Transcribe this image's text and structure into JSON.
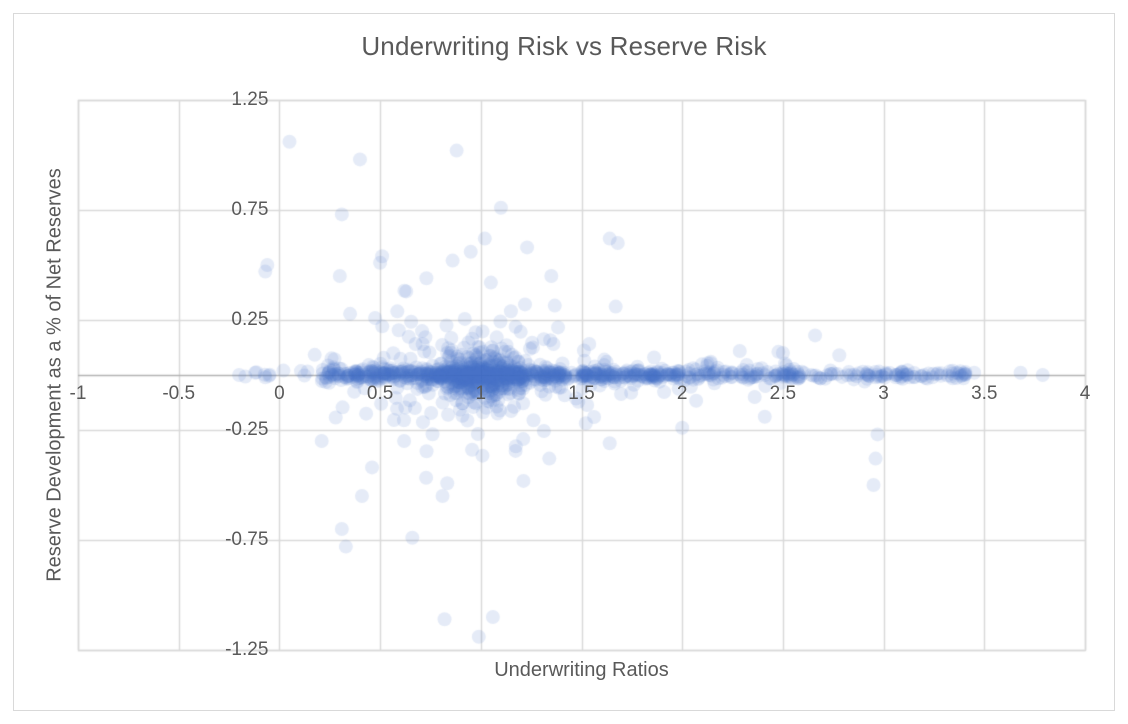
{
  "window": {
    "background_color": "#ffffff",
    "frame_border_color": "#d9d9d9"
  },
  "chart_data": {
    "type": "scatter",
    "title": "Underwriting Risk vs Reserve Risk",
    "xlabel": "Underwriting Ratios",
    "ylabel": "Reserve Development as a % of Net Reserves",
    "xlim": [
      -1,
      4
    ],
    "ylim": [
      -1.25,
      1.25
    ],
    "x_tick_values": [
      -1,
      -0.5,
      0,
      0.5,
      1,
      1.5,
      2,
      2.5,
      3,
      3.5,
      4
    ],
    "x_tick_labels": [
      "-1",
      "-0.5",
      "0",
      "0.5",
      "1",
      "1.5",
      "2",
      "2.5",
      "3",
      "3.5",
      "4"
    ],
    "y_tick_values": [
      1.25,
      0.75,
      0.25,
      -0.25,
      -0.75,
      -1.25
    ],
    "y_tick_labels": [
      "1.25",
      "0.75",
      "0.25",
      "-0.25",
      "-0.75",
      "-1.25"
    ],
    "grid": true,
    "gridline_color": "#d9d9d9",
    "zero_axis_color": "#b3b3b3",
    "text_color": "#595959",
    "legend": "none",
    "marker": {
      "shape": "circle",
      "color": "#4472C4",
      "opacity": 0.14,
      "radius_px": 7
    },
    "seed": 7,
    "distribution_note": "Roughly 1400 translucent points form a dense horizontal band at y=0 from x=0.2 to x=3.4, heaviest near x=1 where a spindle of vertical spread (about +/-0.3) appears; density thins toward x=3.4 with isolated points near x=3.7-3.8.",
    "clusters": [
      {
        "name": "dense-band-core",
        "n": 520,
        "x": {
          "dist": "normal",
          "mean": 1.02,
          "sd": 0.3,
          "min": 0.28,
          "max": 2.15
        },
        "y": {
          "dist": "normal",
          "mean": 0,
          "sd": 0.013
        }
      },
      {
        "name": "spindle",
        "n": 280,
        "x": {
          "dist": "normal",
          "mean": 1.0,
          "sd": 0.11,
          "min": 0.6,
          "max": 1.45
        },
        "y": {
          "dist": "normal",
          "mean": 0,
          "sd": 0.058
        }
      },
      {
        "name": "mid-scatter",
        "n": 150,
        "x": {
          "dist": "normal",
          "mean": 1.0,
          "sd": 0.4,
          "min": 0.15,
          "max": 2.3
        },
        "y": {
          "dist": "normal",
          "mean": 0,
          "sd": 0.16,
          "abs_min": 0.03,
          "min": -0.6,
          "max": 0.6
        }
      },
      {
        "name": "ramp-left",
        "n": 90,
        "x": {
          "dist": "uniform",
          "min": 0.2,
          "max": 0.6
        },
        "y": {
          "dist": "normal",
          "mean": 0,
          "sd": 0.018
        }
      },
      {
        "name": "tail-mid",
        "n": 200,
        "x": {
          "dist": "power",
          "from": 1.5,
          "to": 2.55,
          "exp": 1.25
        },
        "y": {
          "dist": "normal",
          "mean": 0,
          "sd": 0.012
        }
      },
      {
        "name": "tail-mid-fuzz",
        "n": 45,
        "x": {
          "dist": "uniform",
          "min": 1.5,
          "max": 2.6
        },
        "y": {
          "dist": "normal",
          "mean": 0,
          "sd": 0.045
        }
      },
      {
        "name": "tail-right",
        "n": 110,
        "x": {
          "dist": "power",
          "from": 2.5,
          "to": 3.42,
          "exp": 1.1
        },
        "y": {
          "dist": "normal",
          "mean": 0,
          "sd": 0.01
        }
      },
      {
        "name": "left-sparse",
        "n": 8,
        "x": {
          "dist": "uniform",
          "min": -0.22,
          "max": 0.18
        },
        "y": {
          "dist": "normal",
          "mean": 0,
          "sd": 0.01
        }
      }
    ],
    "outlier_points": [
      [
        0.05,
        1.06
      ],
      [
        0.4,
        0.98
      ],
      [
        0.88,
        1.02
      ],
      [
        1.1,
        0.76
      ],
      [
        0.31,
        0.73
      ],
      [
        1.64,
        0.62
      ],
      [
        1.68,
        0.6
      ],
      [
        1.02,
        0.62
      ],
      [
        0.95,
        0.56
      ],
      [
        1.23,
        0.58
      ],
      [
        0.86,
        0.52
      ],
      [
        0.51,
        0.54
      ],
      [
        -0.06,
        0.5
      ],
      [
        0.5,
        0.51
      ],
      [
        -0.07,
        0.47
      ],
      [
        0.3,
        0.45
      ],
      [
        0.73,
        0.44
      ],
      [
        1.05,
        0.42
      ],
      [
        1.35,
        0.45
      ],
      [
        0.63,
        0.38
      ],
      [
        2.66,
        0.18
      ],
      [
        2.5,
        0.1
      ],
      [
        2.78,
        0.09
      ],
      [
        -0.2,
        0.0
      ],
      [
        -0.12,
        0.01
      ],
      [
        -0.07,
        -0.01
      ],
      [
        0.02,
        0.02
      ],
      [
        3.45,
        0.01
      ],
      [
        3.68,
        0.01
      ],
      [
        3.79,
        0.0
      ],
      [
        0.21,
        -0.3
      ],
      [
        0.46,
        -0.42
      ],
      [
        0.41,
        -0.55
      ],
      [
        0.81,
        -0.55
      ],
      [
        0.31,
        -0.7
      ],
      [
        0.33,
        -0.78
      ],
      [
        0.66,
        -0.74
      ],
      [
        1.34,
        -0.38
      ],
      [
        1.64,
        -0.31
      ],
      [
        2.0,
        -0.24
      ],
      [
        2.36,
        -0.1
      ],
      [
        2.41,
        -0.19
      ],
      [
        2.97,
        -0.27
      ],
      [
        2.96,
        -0.38
      ],
      [
        2.95,
        -0.5
      ],
      [
        0.82,
        -1.11
      ],
      [
        1.06,
        -1.1
      ],
      [
        0.99,
        -1.19
      ]
    ]
  }
}
